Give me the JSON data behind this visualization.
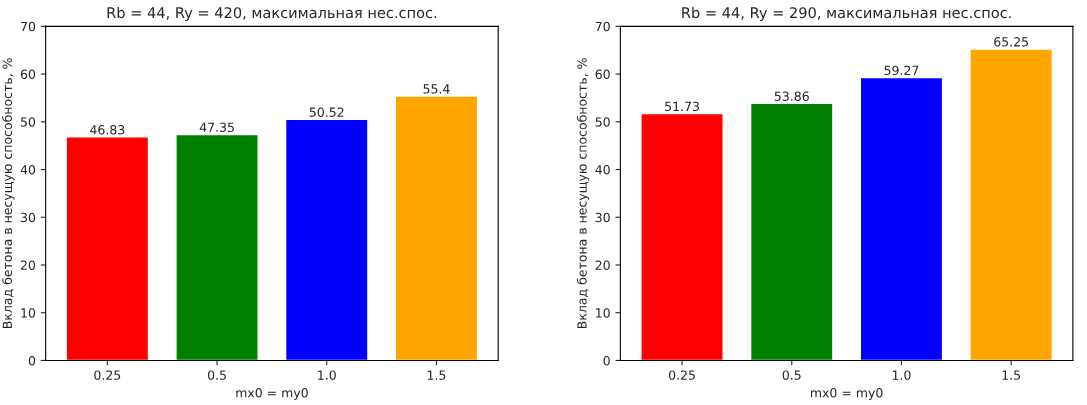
{
  "chart_data": [
    {
      "type": "bar",
      "title": "Rb = 44, Ry = 420, максимальная нес.спос.",
      "xlabel": "mx0 = my0",
      "ylabel": "Вклад бетона в несущую способность, %",
      "categories": [
        "0.25",
        "0.5",
        "1.0",
        "1.5"
      ],
      "values": [
        46.83,
        47.35,
        50.52,
        55.4
      ],
      "colors": [
        "#ff0000",
        "#008000",
        "#0000ff",
        "#ffa500"
      ],
      "ylim": [
        0,
        70
      ],
      "yticks": [
        0,
        10,
        20,
        30,
        40,
        50,
        60,
        70
      ],
      "data_labels": true,
      "grid": false
    },
    {
      "type": "bar",
      "title": "Rb = 44, Ry = 290, максимальная нес.спос.",
      "xlabel": "mx0 = my0",
      "ylabel": "Вклад бетона в несущую способность, %",
      "categories": [
        "0.25",
        "0.5",
        "1.0",
        "1.5"
      ],
      "values": [
        51.73,
        53.86,
        59.27,
        65.25
      ],
      "colors": [
        "#ff0000",
        "#008000",
        "#0000ff",
        "#ffa500"
      ],
      "ylim": [
        0,
        70
      ],
      "yticks": [
        0,
        10,
        20,
        30,
        40,
        50,
        60,
        70
      ],
      "data_labels": true,
      "grid": false
    }
  ]
}
